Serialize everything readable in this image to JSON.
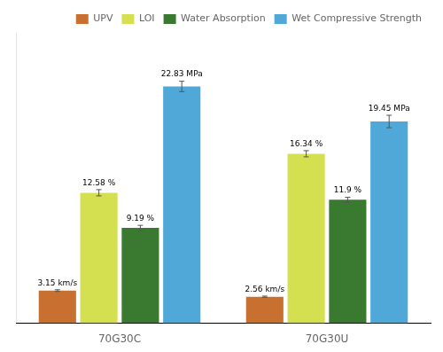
{
  "chart_data": {
    "type": "bar",
    "categories": [
      "70G30C",
      "70G30U"
    ],
    "series": [
      {
        "name": "UPV",
        "color": "#C87030",
        "values": [
          3.15,
          2.56
        ],
        "errors": [
          0.08,
          0.06
        ],
        "value_labels": [
          "3.15 km/s",
          "2.56 km/s"
        ]
      },
      {
        "name": "LOI",
        "color": "#D4E050",
        "values": [
          12.58,
          16.34
        ],
        "errors": [
          0.3,
          0.3
        ],
        "value_labels": [
          "12.58 %",
          "16.34 %"
        ]
      },
      {
        "name": "Water Absorption",
        "color": "#3A7A30",
        "values": [
          9.19,
          11.9
        ],
        "errors": [
          0.25,
          0.25
        ],
        "value_labels": [
          "9.19 %",
          "11.9 %"
        ]
      },
      {
        "name": "Wet Compressive Strength",
        "color": "#4FA8D8",
        "values": [
          22.83,
          19.45
        ],
        "errors": [
          0.5,
          0.6
        ],
        "value_labels": [
          "22.83 MPa",
          "19.45 MPa"
        ]
      }
    ],
    "ylim": [
      0,
      28
    ],
    "grid": false,
    "legend": "upper right",
    "data_labels": true,
    "tick_labels": "x"
  }
}
